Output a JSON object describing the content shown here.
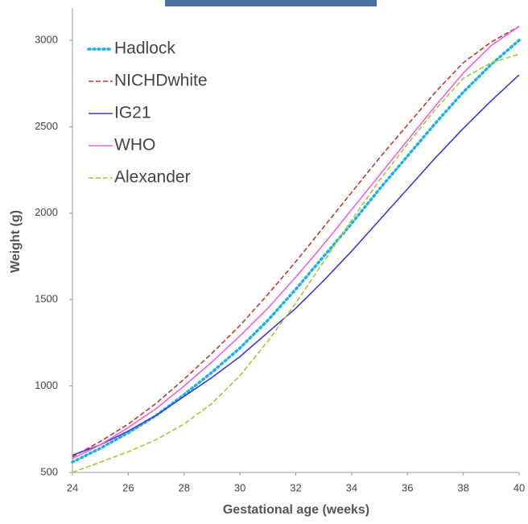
{
  "chart_data": {
    "type": "line",
    "x_label": "Gestational age (weeks)",
    "y_label": "Weight (g)",
    "x": [
      24,
      25,
      26,
      27,
      28,
      29,
      30,
      31,
      32,
      33,
      34,
      35,
      36,
      37,
      38,
      39,
      40
    ],
    "xlim": [
      24,
      40
    ],
    "xticks": [
      24,
      26,
      28,
      30,
      32,
      34,
      36,
      38,
      40
    ],
    "ylim": [
      500,
      3200
    ],
    "yticks": [
      500,
      1000,
      1500,
      2000,
      2500,
      3000
    ],
    "grid": false,
    "legend": "top-left",
    "series": [
      {
        "name": "Hadlock",
        "color": "#1cb0e8",
        "style": "dotted",
        "values": [
          560,
          640,
          730,
          830,
          950,
          1080,
          1220,
          1380,
          1560,
          1750,
          1940,
          2140,
          2330,
          2520,
          2700,
          2860,
          3000
        ]
      },
      {
        "name": "NICHDwhite",
        "color": "#c0392b",
        "style": "dashed",
        "values": [
          590,
          680,
          780,
          900,
          1040,
          1190,
          1350,
          1530,
          1720,
          1920,
          2120,
          2320,
          2510,
          2700,
          2870,
          2990,
          3080
        ]
      },
      {
        "name": "IG21",
        "color": "#3a3ad8",
        "style": "solid",
        "values": [
          600,
          660,
          740,
          830,
          940,
          1050,
          1170,
          1310,
          1450,
          1610,
          1780,
          1960,
          2140,
          2320,
          2490,
          2650,
          2800
        ]
      },
      {
        "name": "WHO",
        "color": "#f060e0",
        "style": "solid",
        "values": [
          580,
          660,
          760,
          870,
          1000,
          1140,
          1290,
          1450,
          1630,
          1820,
          2020,
          2220,
          2420,
          2620,
          2810,
          2970,
          3080
        ]
      },
      {
        "name": "Alexander",
        "color": "#9acd32",
        "style": "dashed",
        "values": [
          500,
          560,
          620,
          690,
          780,
          900,
          1060,
          1260,
          1480,
          1720,
          1960,
          2190,
          2400,
          2600,
          2780,
          2870,
          2920
        ]
      }
    ]
  }
}
